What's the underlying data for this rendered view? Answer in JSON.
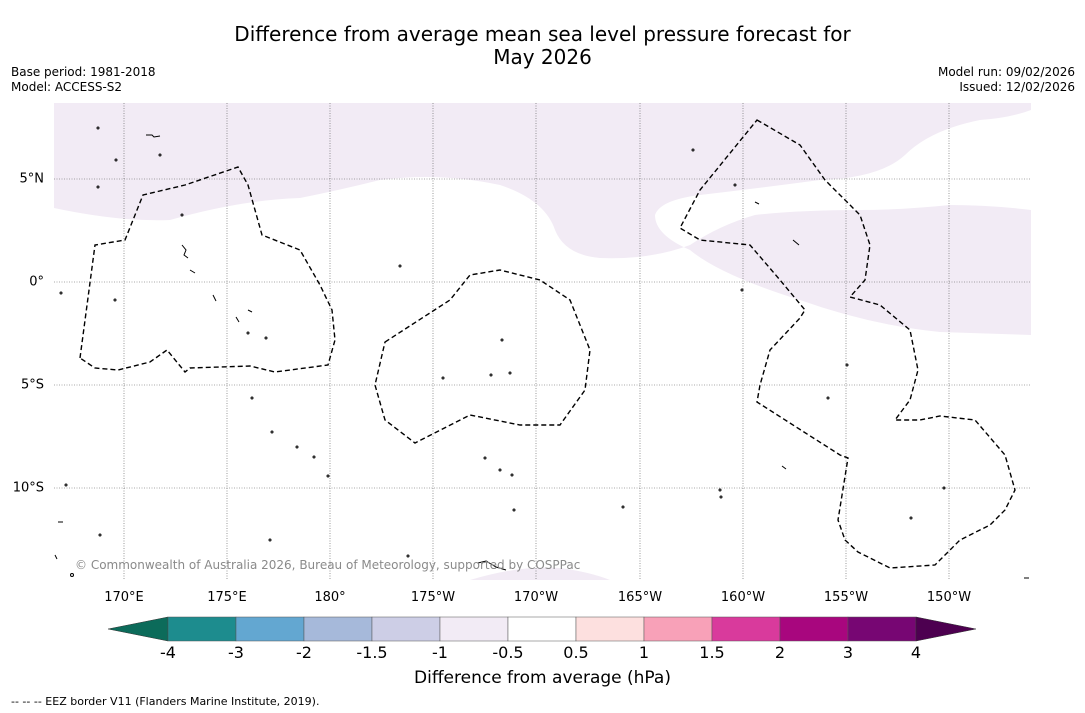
{
  "title": {
    "line1": "Difference from average mean sea level pressure forecast for",
    "line2": "May 2026"
  },
  "meta_left": {
    "base_period": "Base period: 1981-2018",
    "model": "Model: ACCESS-S2"
  },
  "meta_right": {
    "model_run": "Model run: 09/02/2026",
    "issued": "Issued: 12/02/2026"
  },
  "map": {
    "longitude_ticks": [
      "170°E",
      "175°E",
      "180°",
      "175°W",
      "170°W",
      "165°W",
      "160°W",
      "155°W",
      "150°W"
    ],
    "latitude_ticks": [
      "5°N",
      "0°",
      "5°S",
      "10°S"
    ],
    "copyright": "© Commonwealth of Australia 2026, Bureau of Meteorology, supported by COSPPac"
  },
  "colorbar": {
    "title": "Difference from average (hPa)",
    "tick_labels": [
      "-4",
      "-3",
      "-2",
      "-1.5",
      "-1",
      "-0.5",
      "0.5",
      "1",
      "1.5",
      "2",
      "3",
      "4"
    ],
    "colors": [
      "#1d8c8e",
      "#63a7d1",
      "#a6b9da",
      "#cdcee6",
      "#f2ebf5",
      "#ffffff",
      "#fde0df",
      "#f8a1b8",
      "#d93a9c",
      "#a8067e",
      "#770673"
    ],
    "under_color": "#0c6b5a",
    "over_color": "#4d0050"
  },
  "shading": {
    "main_region_color": "#f2ebf5",
    "main_region_category": "-1 to -0.5 hPa"
  },
  "footnote": "--  --  -- EEZ border V11 (Flanders Marine Institute, 2019)."
}
